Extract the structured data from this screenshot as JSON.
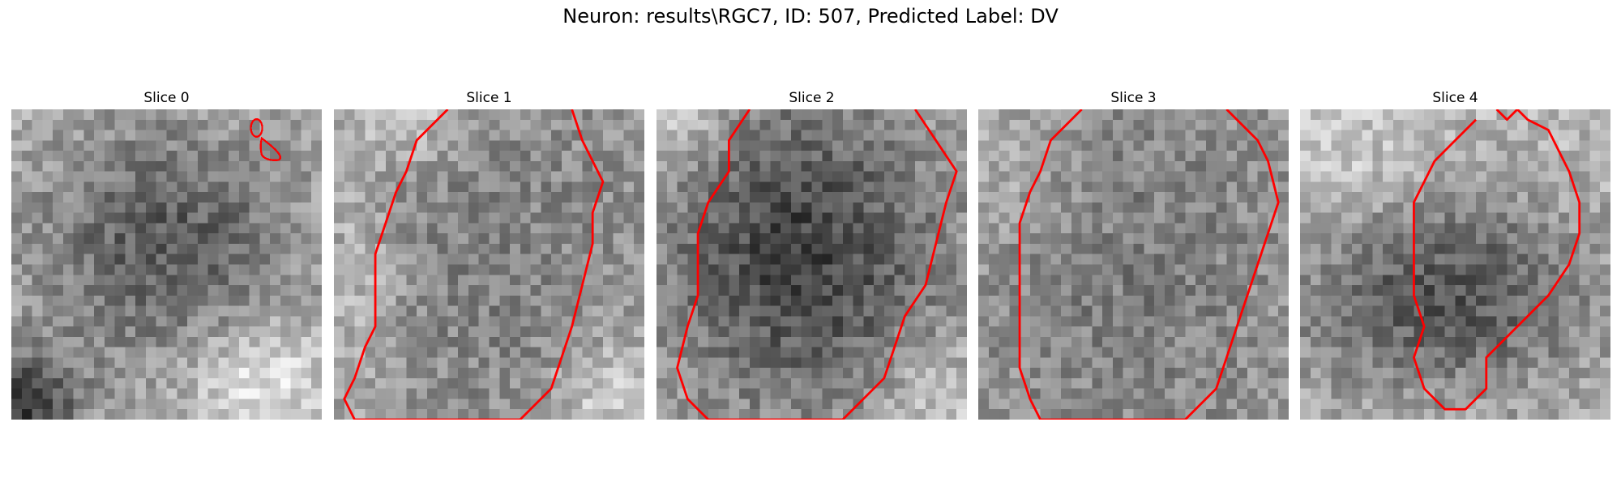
{
  "figure": {
    "title": "Neuron: results\\RGC7, ID: 507, Predicted Label: DV"
  },
  "panels": [
    {
      "title": "Slice 0"
    },
    {
      "title": "Slice 1"
    },
    {
      "title": "Slice 2"
    },
    {
      "title": "Slice 3"
    },
    {
      "title": "Slice 4"
    }
  ],
  "colors": {
    "contour": "#ff0000",
    "background": "#ffffff"
  }
}
